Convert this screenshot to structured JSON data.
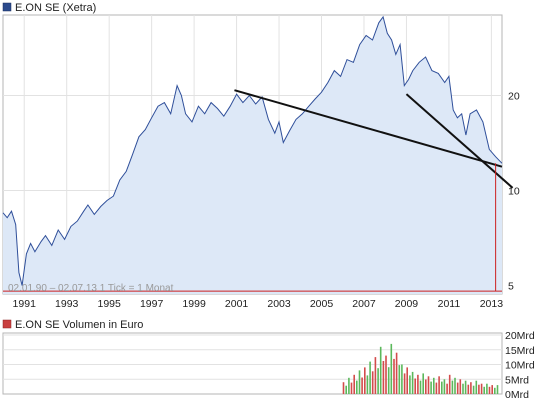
{
  "chart_data": [
    {
      "type": "area",
      "legend": "E.ON SE (Xetra)",
      "legend_color": "#2b4a8c",
      "line_color": "#2f4f9a",
      "fill_color": "#dde8f7",
      "info": "02.01.90 – 02.07.13   1 Tick = 1 Monat",
      "y_scale": "log",
      "ylim": [
        4.7,
        36
      ],
      "xlim": [
        1990.0,
        2013.5
      ],
      "y_ticks": [
        {
          "value": 20,
          "label": "20"
        },
        {
          "value": 10,
          "label": "10"
        },
        {
          "value": 5,
          "label": "5"
        }
      ],
      "x_ticks": [
        "1991",
        "1993",
        "1995",
        "1997",
        "1999",
        "2001",
        "2003",
        "2005",
        "2007",
        "2009",
        "2011",
        "2013"
      ],
      "x_tick_values": [
        1991,
        1993,
        1995,
        1997,
        1999,
        2001,
        2003,
        2005,
        2007,
        2009,
        2011,
        2013
      ],
      "series": [
        {
          "x": [
            1990.0,
            1990.2,
            1990.4,
            1990.6,
            1990.75,
            1990.9,
            1991.1,
            1991.3,
            1991.5,
            1991.8,
            1992.0,
            1992.3,
            1992.6,
            1992.9,
            1993.2,
            1993.5,
            1993.8,
            1994.0,
            1994.3,
            1994.6,
            1994.9,
            1995.2,
            1995.5,
            1995.8,
            1996.1,
            1996.4,
            1996.7,
            1997.0,
            1997.3,
            1997.6,
            1997.9,
            1998.2,
            1998.4,
            1998.6,
            1998.9,
            1999.2,
            1999.5,
            1999.8,
            2000.1,
            2000.4,
            2000.7,
            2001.0,
            2001.3,
            2001.6,
            2001.9,
            2002.2,
            2002.5,
            2002.8,
            2003.0,
            2003.2,
            2003.5,
            2003.8,
            2004.1,
            2004.4,
            2004.7,
            2005.0,
            2005.3,
            2005.6,
            2005.9,
            2006.2,
            2006.5,
            2006.8,
            2007.1,
            2007.4,
            2007.7,
            2007.9,
            2008.1,
            2008.3,
            2008.5,
            2008.7,
            2008.9,
            2009.1,
            2009.3,
            2009.6,
            2009.9,
            2010.2,
            2010.5,
            2010.8,
            2011.0,
            2011.2,
            2011.4,
            2011.6,
            2011.8,
            2012.0,
            2012.3,
            2012.6,
            2012.9,
            2013.2,
            2013.5
          ],
          "y": [
            8.5,
            8.2,
            8.6,
            7.8,
            5.5,
            5.0,
            6.3,
            6.8,
            6.4,
            6.9,
            7.2,
            6.7,
            7.5,
            7.0,
            7.7,
            8.0,
            8.6,
            9.0,
            8.4,
            8.9,
            9.3,
            9.6,
            10.8,
            11.5,
            13.0,
            14.8,
            15.6,
            17.0,
            18.5,
            19.0,
            17.5,
            21.5,
            20.0,
            17.5,
            16.5,
            18.5,
            17.5,
            19.0,
            18.2,
            17.2,
            18.5,
            20.2,
            19.0,
            20.0,
            18.8,
            19.8,
            16.8,
            15.2,
            16.5,
            14.2,
            15.5,
            16.8,
            17.5,
            18.5,
            19.5,
            20.5,
            22.0,
            24.0,
            23.0,
            26.0,
            25.5,
            29.0,
            31.0,
            30.0,
            34.0,
            35.5,
            31.5,
            30.0,
            27.0,
            29.0,
            21.5,
            22.5,
            24.0,
            25.5,
            26.5,
            24.0,
            23.5,
            22.0,
            23.0,
            18.0,
            17.0,
            17.5,
            15.0,
            17.5,
            18.0,
            16.5,
            13.5,
            12.8,
            12.2
          ]
        }
      ],
      "trendlines": [
        {
          "x": [
            2000.9,
            2013.5
          ],
          "y": [
            20.8,
            11.9
          ]
        },
        {
          "x": [
            2009.0,
            2014.0
          ],
          "y": [
            20.2,
            10.2
          ]
        },
        {
          "x": [
            2013.2,
            2013.2
          ],
          "y": [
            12.2,
            4.8
          ]
        }
      ],
      "support_line": {
        "y": 4.8
      },
      "support_color": "#cc1f1f"
    },
    {
      "type": "bar",
      "legend": "E.ON SE Volumen in Euro",
      "legend_color": "#c94040",
      "y_ticks": [
        {
          "value": 20,
          "label": "20Mrd"
        },
        {
          "value": 15,
          "label": "15Mrd"
        },
        {
          "value": 10,
          "label": "10Mrd"
        },
        {
          "value": 5,
          "label": "5Mrd"
        },
        {
          "value": 0,
          "label": "0Mrd"
        }
      ],
      "ylim": [
        0,
        20
      ],
      "x": [
        2006.0,
        2006.25,
        2006.5,
        2006.75,
        2007.0,
        2007.25,
        2007.5,
        2007.75,
        2008.0,
        2008.25,
        2008.5,
        2008.75,
        2009.0,
        2009.25,
        2009.5,
        2009.75,
        2010.0,
        2010.25,
        2010.5,
        2010.75,
        2011.0,
        2011.25,
        2011.5,
        2011.75,
        2012.0,
        2012.25,
        2012.5,
        2012.75,
        2013.0,
        2013.25
      ],
      "values": [
        4.0,
        5.5,
        6.5,
        8.0,
        9.0,
        11.0,
        12.5,
        16.0,
        13.0,
        17.0,
        14.0,
        10.0,
        9.0,
        7.5,
        6.5,
        7.0,
        6.0,
        5.5,
        6.0,
        5.0,
        6.5,
        5.5,
        5.0,
        4.5,
        4.0,
        4.5,
        3.5,
        3.5,
        3.0,
        3.0
      ]
    }
  ]
}
